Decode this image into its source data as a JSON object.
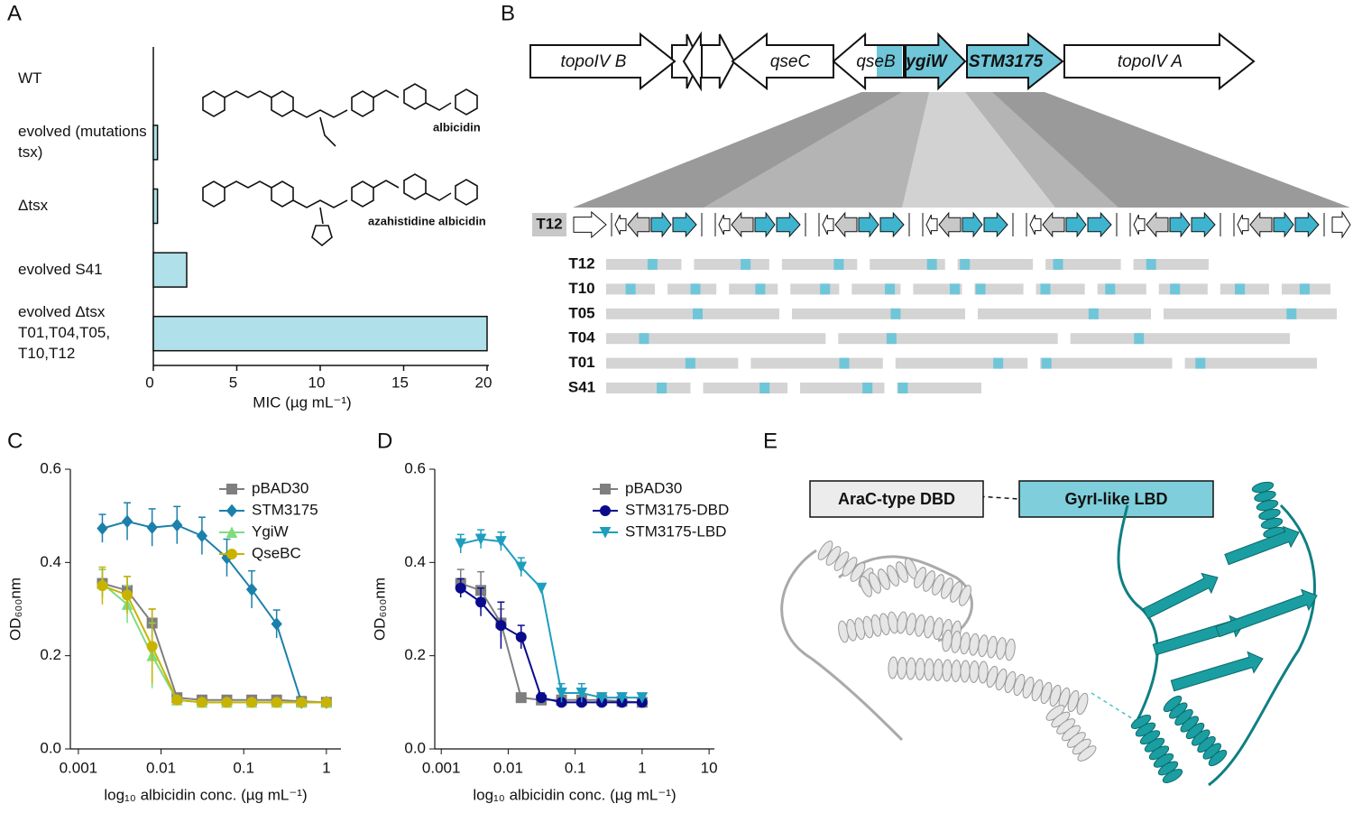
{
  "panel_labels": [
    "A",
    "B",
    "C",
    "D",
    "E"
  ],
  "chart_data": [
    {
      "type": "bar",
      "orientation": "horizontal",
      "categories": [
        "WT",
        "evolved (mutations tsx)",
        "Δtsx",
        "evolved  S41",
        "evolved Δtsx T01,T04,T05, T10,T12"
      ],
      "values": [
        0,
        0.25,
        0.25,
        2,
        20
      ],
      "color": "#b0e0ea",
      "xlim": [
        0,
        20
      ],
      "xticks": [
        0,
        5,
        10,
        15,
        20
      ],
      "xlabel": "MIC (µg mL⁻¹)"
    },
    {
      "type": "line",
      "xscale": "log",
      "legend": "upper right",
      "x": [
        0.00195,
        0.0039,
        0.0078,
        0.0156,
        0.03125,
        0.0625,
        0.125,
        0.25,
        0.5,
        1
      ],
      "series": [
        {
          "name": "pBAD30",
          "color": "#7f7f7f",
          "marker": "square",
          "values": [
            0.355,
            0.34,
            0.27,
            0.11,
            0.105,
            0.105,
            0.105,
            0.105,
            0.102,
            0.1
          ],
          "errors": [
            0.03,
            0.03,
            0.03,
            0.005,
            0.005,
            0.005,
            0.005,
            0.005,
            0.005,
            0.005
          ]
        },
        {
          "name": "STM3175",
          "color": "#1b80ab",
          "marker": "diamond",
          "values": [
            0.473,
            0.488,
            0.475,
            0.48,
            0.457,
            0.41,
            0.342,
            0.268,
            0.1,
            0.1
          ],
          "errors": [
            0.03,
            0.04,
            0.04,
            0.04,
            0.04,
            0.04,
            0.04,
            0.03,
            0.005,
            0.005
          ]
        },
        {
          "name": "YgiW",
          "color": "#7fdc7f",
          "marker": "triangle",
          "values": [
            0.355,
            0.31,
            0.2,
            0.105,
            0.1,
            0.1,
            0.1,
            0.1,
            0.1,
            0.1
          ],
          "errors": [
            0.03,
            0.04,
            0.07,
            0.005,
            0.005,
            0.005,
            0.005,
            0.005,
            0.005,
            0.005
          ]
        },
        {
          "name": "QseBC",
          "color": "#c8b400",
          "marker": "circle",
          "values": [
            0.35,
            0.33,
            0.22,
            0.105,
            0.1,
            0.1,
            0.1,
            0.1,
            0.1,
            0.1
          ],
          "errors": [
            0.04,
            0.04,
            0.08,
            0.005,
            0.005,
            0.005,
            0.005,
            0.005,
            0.005,
            0.005
          ]
        }
      ],
      "xlim": [
        0.0008,
        1.5
      ],
      "xticks": [
        0.001,
        0.01,
        0.1,
        1
      ],
      "ylim": [
        0,
        0.6
      ],
      "yticks": [
        {
          "value": 0,
          "label": "0.0"
        },
        0.2,
        0.4,
        0.6
      ],
      "xlabel": "log₁₀ albicidin conc. (µg mL⁻¹)",
      "ylabel": "OD₆₀₀nm"
    },
    {
      "type": "line",
      "xscale": "log",
      "legend": "upper right",
      "x": [
        0.00195,
        0.0039,
        0.0078,
        0.0156,
        0.03125,
        0.0625,
        0.125,
        0.25,
        0.5,
        1
      ],
      "series": [
        {
          "name": "pBAD30",
          "color": "#7f7f7f",
          "marker": "square",
          "values": [
            0.355,
            0.34,
            0.27,
            0.11,
            0.105,
            0.105,
            0.105,
            0.105,
            0.102,
            0.1
          ],
          "errors": [
            0.03,
            0.04,
            0.03,
            0.005,
            0.005,
            0.005,
            0.005,
            0.005,
            0.005,
            0.005
          ]
        },
        {
          "name": "STM3175-DBD",
          "color": "#0a0a8c",
          "marker": "circle",
          "values": [
            0.345,
            0.315,
            0.265,
            0.24,
            0.11,
            0.1,
            0.1,
            0.1,
            0.1,
            0.1
          ],
          "errors": [
            0.02,
            0.03,
            0.05,
            0.025,
            0.01,
            0.005,
            0.005,
            0.005,
            0.005,
            0.005
          ]
        },
        {
          "name": "STM3175-LBD",
          "color": "#1e9ebf",
          "marker": "triangle-down",
          "values": [
            0.44,
            0.45,
            0.445,
            0.39,
            0.345,
            0.12,
            0.12,
            0.11,
            0.11,
            0.11
          ],
          "errors": [
            0.02,
            0.02,
            0.02,
            0.02,
            0.005,
            0.02,
            0.02,
            0.01,
            0.01,
            0.005
          ]
        }
      ],
      "xlim": [
        0.0008,
        12
      ],
      "xticks": [
        0.001,
        0.01,
        0.1,
        1,
        10
      ],
      "ylim": [
        0,
        0.6
      ],
      "yticks": [
        {
          "value": 0,
          "label": "0.0"
        },
        0.2,
        0.4,
        0.6
      ],
      "xlabel": "log₁₀ albicidin conc. (µg mL⁻¹)",
      "ylabel": "OD₆₀₀nm"
    }
  ],
  "structures": {
    "labels": [
      "albicidin",
      "azahistidine albicidin"
    ]
  },
  "gene_map": {
    "genes": [
      {
        "label": "topoIV B",
        "direction": "right",
        "color": "#ffffff",
        "bold": false
      },
      {
        "label": "qseC",
        "direction": "left",
        "color": "#ffffff",
        "bold": false
      },
      {
        "label": "qseB",
        "direction": "left",
        "color": "#ffffff",
        "bold": false
      },
      {
        "label": "ygiW",
        "direction": "right",
        "color": "#6fc6d8",
        "bold": true
      },
      {
        "label": "STM3175",
        "direction": "right",
        "color": "#6fc6d8",
        "bold": true
      },
      {
        "label": "topoIV A",
        "direction": "right",
        "color": "#ffffff",
        "bold": false
      }
    ],
    "track_label": "T12",
    "strains": [
      "T12",
      "T10",
      "T05",
      "T04",
      "T01",
      "S41"
    ]
  },
  "domain_diagram": {
    "domains": [
      {
        "label": "AraC-type DBD",
        "color": "#ececec"
      },
      {
        "label": "GyrI-like LBD",
        "color": "#7ecfdb"
      }
    ]
  }
}
